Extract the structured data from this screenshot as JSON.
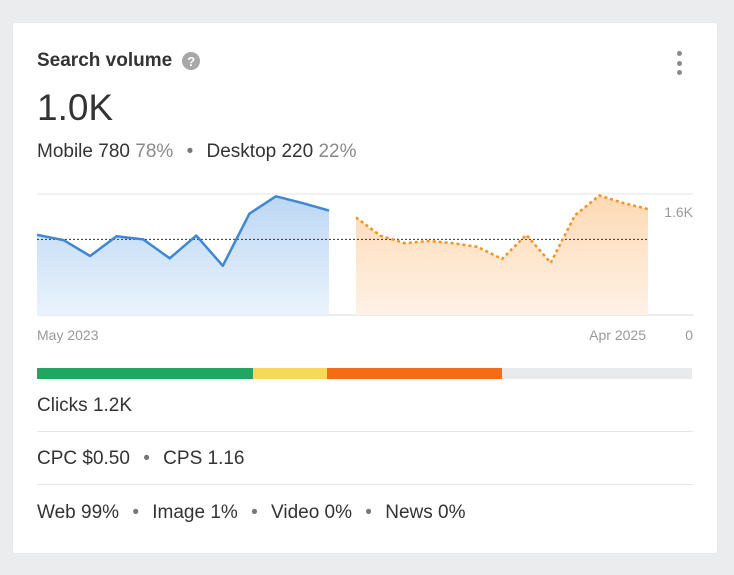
{
  "card": {
    "title": "Search volume",
    "help_glyph": "?",
    "value": "1.0K",
    "mobile_label": "Mobile",
    "mobile_value": "780",
    "mobile_pct": "78%",
    "desktop_label": "Desktop",
    "desktop_value": "220",
    "desktop_pct": "22%",
    "separator": "•"
  },
  "chart_data": {
    "type": "area",
    "x_start_label": "May 2023",
    "x_end_label": "Apr 2025",
    "y_max_label": "1.6K",
    "y_min_label": "0",
    "ylim": [
      0,
      1600
    ],
    "average": 1000,
    "series": [
      {
        "style": "solid",
        "color": "#3d87d6",
        "values": [
          1060,
          990,
          780,
          1040,
          1000,
          750,
          1050,
          650,
          1340,
          1570,
          1480,
          1380
        ]
      },
      {
        "style": "dotted",
        "color": "#f7931e",
        "values": [
          1290,
          1050,
          950,
          980,
          950,
          900,
          740,
          1060,
          690,
          1320,
          1580,
          1480,
          1400
        ]
      }
    ]
  },
  "intent_bar": {
    "segments": [
      {
        "color": "#22a463",
        "pct": 33
      },
      {
        "color": "#f6d95a",
        "pct": 11.2
      },
      {
        "color": "#f56b16",
        "pct": 26.8
      }
    ]
  },
  "metrics": {
    "clicks": "Clicks 1.2K",
    "cpc": "CPC $0.50",
    "cps": "CPS 1.16",
    "web": "Web 99%",
    "image": "Image 1%",
    "video": "Video 0%",
    "news": "News 0%"
  },
  "colors": {
    "accent_blue": "#3d87d6",
    "accent_orange": "#f7931e"
  }
}
